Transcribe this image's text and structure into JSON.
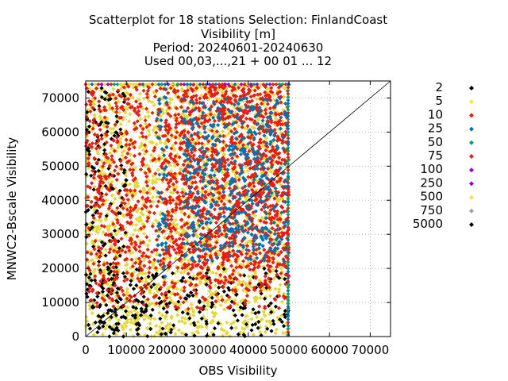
{
  "chart_data": {
    "type": "scatter",
    "title_lines": [
      "Scatterplot for   18 stations Selection: FinlandCoast",
      "Visibility [m]",
      "Period: 20240601-20240630",
      "Used 00,03,...,21 + 00 01 ... 12"
    ],
    "xlabel": "OBS Visibility",
    "ylabel": "MNWC2-Bscale Visibility",
    "xlim": [
      0,
      75000
    ],
    "ylim": [
      0,
      75000
    ],
    "xticks": [
      0,
      10000,
      20000,
      30000,
      40000,
      50000,
      60000,
      70000
    ],
    "xtick_labels": [
      "0",
      "10000",
      "20000",
      "30000",
      "40000",
      "50000",
      "60000",
      "70000"
    ],
    "yticks": [
      0,
      10000,
      20000,
      30000,
      40000,
      50000,
      60000,
      70000
    ],
    "ytick_labels": [
      "0",
      "10000",
      "20000",
      "30000",
      "40000",
      "50000",
      "60000",
      "70000"
    ],
    "grid": true,
    "diagonal": true,
    "legend_position": "right",
    "legend": [
      {
        "label": "2",
        "color": "#000000"
      },
      {
        "label": "5",
        "color": "#f0e442"
      },
      {
        "label": "10",
        "color": "#e51e10"
      },
      {
        "label": "25",
        "color": "#0072b2"
      },
      {
        "label": "50",
        "color": "#009e73"
      },
      {
        "label": "75",
        "color": "#e51e10"
      },
      {
        "label": "100",
        "color": "#9400d3"
      },
      {
        "label": "250",
        "color": "#9400d3"
      },
      {
        "label": "500",
        "color": "#f0e442"
      },
      {
        "label": "750",
        "color": "#a0a0a0"
      },
      {
        "label": "5000",
        "color": "#000000"
      }
    ],
    "density_regions": [
      {
        "layer": "5",
        "color": "#e5d83a",
        "x": [
          0,
          50000
        ],
        "y": [
          0,
          74000
        ],
        "density": 0.7
      },
      {
        "layer": "2",
        "color": "#000000",
        "x": [
          0,
          10000
        ],
        "y": [
          0,
          74000
        ],
        "density": 0.35
      },
      {
        "layer": "2",
        "color": "#000000",
        "x": [
          0,
          50000
        ],
        "y": [
          0,
          20000
        ],
        "density": 0.3
      },
      {
        "layer": "10",
        "color": "#e51e10",
        "x": [
          0,
          50000
        ],
        "y": [
          8000,
          74000
        ],
        "density": 0.5
      },
      {
        "layer": "10",
        "color": "#e51e10",
        "x": [
          20000,
          50000
        ],
        "y": [
          20000,
          74000
        ],
        "density": 0.6
      },
      {
        "layer": "25",
        "color": "#0072b2",
        "x": [
          24000,
          49500
        ],
        "y": [
          22000,
          70000
        ],
        "density": 0.55
      },
      {
        "layer": "25",
        "color": "#0072b2",
        "x": [
          17500,
          20000
        ],
        "y": [
          17000,
          74000
        ],
        "density": 0.5
      }
    ],
    "top_band_colors": [
      "#9400d3",
      "#0072b2",
      "#009e73",
      "#e51e10",
      "#e5d83a"
    ],
    "right_edge_x": 49800,
    "right_edge_colors": [
      "#009e73",
      "#0072b2",
      "#e51e10"
    ]
  }
}
